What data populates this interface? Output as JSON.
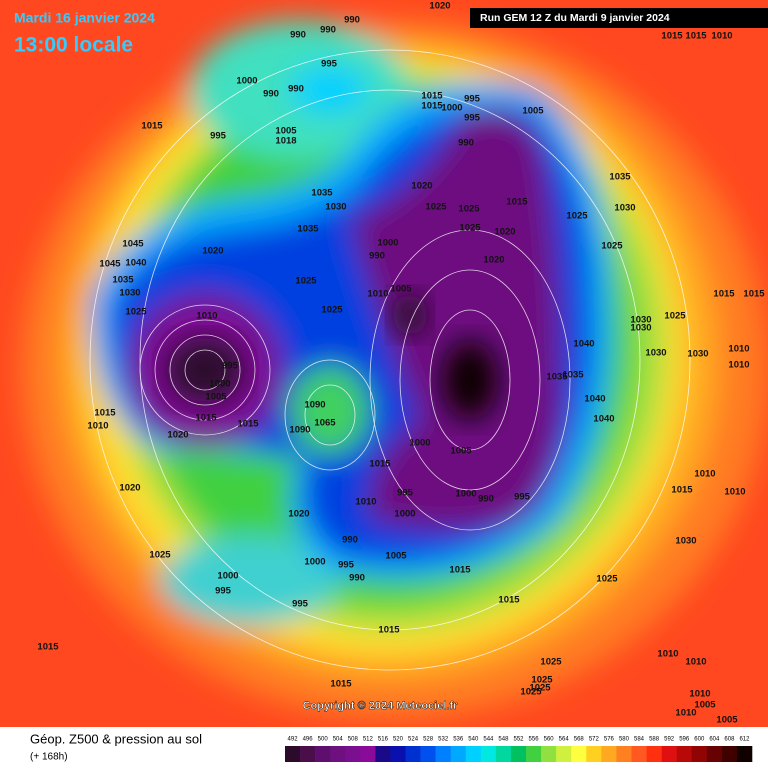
{
  "header": {
    "date": "Mardi 16 janvier 2024",
    "time": "13:00 locale",
    "run": "Run GEM 12 Z du Mardi 9 janvier 2024"
  },
  "copyright": "Copyright © 2024 Meteociel.fr",
  "footer": {
    "title": "Géop. Z500 & pression au sol",
    "lead": "(+ 168h)"
  },
  "scale": {
    "values": [
      492,
      496,
      500,
      504,
      508,
      512,
      516,
      520,
      524,
      528,
      532,
      536,
      540,
      544,
      548,
      552,
      556,
      560,
      564,
      568,
      572,
      576,
      580,
      584,
      588,
      592,
      596,
      600,
      604,
      608,
      612
    ],
    "colors": [
      "#2b0a2b",
      "#4a0f4a",
      "#5e0f6e",
      "#6e1080",
      "#7a1090",
      "#8a0a9a",
      "#1a0a8a",
      "#0a10b0",
      "#0030d0",
      "#0050f0",
      "#0080ff",
      "#00a8ff",
      "#00d0ff",
      "#00e8e0",
      "#00d8a0",
      "#00c060",
      "#40d040",
      "#90e040",
      "#d0f040",
      "#ffff40",
      "#ffd020",
      "#ffa820",
      "#ff8020",
      "#ff5820",
      "#ff3010",
      "#e01010",
      "#b80808",
      "#900404",
      "#680202",
      "#400000",
      "#100000"
    ]
  },
  "pressure_labels": [
    1020,
    990,
    990,
    990,
    995,
    1000,
    990,
    990,
    1015,
    995,
    1005,
    1018,
    1015,
    1015,
    1000,
    995,
    995,
    1005,
    990,
    1035,
    1030,
    1020,
    1025,
    1025,
    1015,
    1025,
    1030,
    1035,
    1015,
    1010,
    1015,
    1045,
    1040,
    1045,
    1035,
    1030,
    1020,
    1035,
    1000,
    990,
    1025,
    1020,
    1020,
    1025,
    1010,
    1005,
    1025,
    1025,
    1010,
    1025,
    1015,
    1015,
    1025,
    1030,
    1030,
    1040,
    1030,
    1030,
    1010,
    1010,
    1035,
    1035,
    995,
    1000,
    1005,
    1015,
    1010,
    1015,
    1015,
    1020,
    1040,
    1040,
    1090,
    1065,
    1090,
    1000,
    1005,
    1015,
    1010,
    1015,
    1010,
    1020,
    995,
    1000,
    990,
    995,
    1010,
    1000,
    1020,
    1030,
    990,
    1005,
    1025,
    1000,
    995,
    990,
    1015,
    1000,
    995,
    995,
    1025,
    1015,
    1015,
    1015,
    1025,
    1010,
    1010,
    1025,
    1025,
    1025,
    1015,
    1010,
    1005,
    1010,
    1005
  ]
}
